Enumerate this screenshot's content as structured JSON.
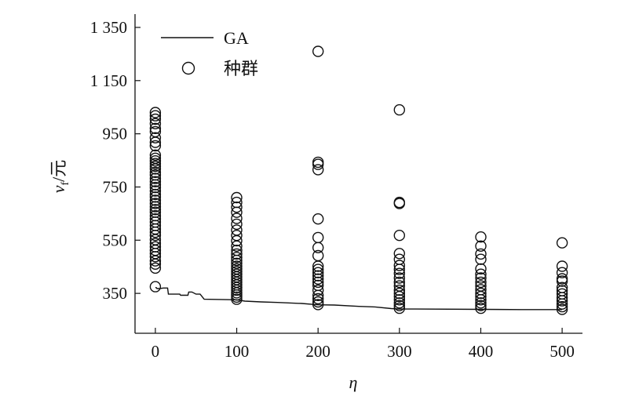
{
  "chart_data": {
    "type": "scatter",
    "xlabel": "η",
    "ylabel": "v_f/元",
    "ylabel_main": "v",
    "ylabel_sub": "f",
    "ylabel_unit": "/元",
    "xlim": [
      -25,
      525
    ],
    "ylim": [
      200,
      1400
    ],
    "x_ticks": [
      0,
      100,
      200,
      300,
      400,
      500
    ],
    "y_ticks": [
      350,
      550,
      750,
      950,
      1150,
      1350
    ],
    "x_tick_labels": [
      "0",
      "100",
      "200",
      "300",
      "400",
      "500"
    ],
    "y_tick_labels": [
      "350",
      "550",
      "750",
      "950",
      "1 150",
      "1 350"
    ],
    "legend": {
      "position": "top-left",
      "entries": [
        {
          "label": "GA",
          "kind": "line"
        },
        {
          "label": "种群",
          "kind": "circle"
        }
      ]
    },
    "series": [
      {
        "name": "GA",
        "type": "line",
        "x": [
          0,
          1,
          2,
          5,
          10,
          15,
          16,
          30,
          31,
          40,
          41,
          45,
          50,
          55,
          60,
          100,
          110,
          130,
          150,
          180,
          200,
          220,
          250,
          270,
          290,
          300,
          320,
          400,
          450,
          500
        ],
        "y": [
          372,
          372,
          368,
          368,
          370,
          370,
          347,
          347,
          343,
          343,
          355,
          355,
          347,
          347,
          328,
          326,
          321,
          318,
          316,
          312,
          307,
          306,
          301,
          299,
          293,
          291,
          291,
          290,
          289,
          289
        ]
      },
      {
        "name": "种群",
        "type": "scatter",
        "points": [
          [
            0,
            1030
          ],
          [
            0,
            1018
          ],
          [
            0,
            1005
          ],
          [
            0,
            988
          ],
          [
            0,
            970
          ],
          [
            0,
            958
          ],
          [
            0,
            935
          ],
          [
            0,
            918
          ],
          [
            0,
            905
          ],
          [
            0,
            870
          ],
          [
            0,
            858
          ],
          [
            0,
            848
          ],
          [
            0,
            838
          ],
          [
            0,
            828
          ],
          [
            0,
            818
          ],
          [
            0,
            805
          ],
          [
            0,
            795
          ],
          [
            0,
            782
          ],
          [
            0,
            770
          ],
          [
            0,
            758
          ],
          [
            0,
            748
          ],
          [
            0,
            735
          ],
          [
            0,
            722
          ],
          [
            0,
            712
          ],
          [
            0,
            700
          ],
          [
            0,
            688
          ],
          [
            0,
            676
          ],
          [
            0,
            665
          ],
          [
            0,
            655
          ],
          [
            0,
            642
          ],
          [
            0,
            630
          ],
          [
            0,
            618
          ],
          [
            0,
            605
          ],
          [
            0,
            592
          ],
          [
            0,
            580
          ],
          [
            0,
            568
          ],
          [
            0,
            552
          ],
          [
            0,
            538
          ],
          [
            0,
            525
          ],
          [
            0,
            512
          ],
          [
            0,
            500
          ],
          [
            0,
            488
          ],
          [
            0,
            472
          ],
          [
            0,
            460
          ],
          [
            0,
            445
          ],
          [
            0,
            375
          ],
          [
            100,
            710
          ],
          [
            100,
            692
          ],
          [
            100,
            674
          ],
          [
            100,
            655
          ],
          [
            100,
            632
          ],
          [
            100,
            610
          ],
          [
            100,
            588
          ],
          [
            100,
            568
          ],
          [
            100,
            548
          ],
          [
            100,
            528
          ],
          [
            100,
            512
          ],
          [
            100,
            498
          ],
          [
            100,
            485
          ],
          [
            100,
            474
          ],
          [
            100,
            463
          ],
          [
            100,
            452
          ],
          [
            100,
            442
          ],
          [
            100,
            432
          ],
          [
            100,
            422
          ],
          [
            100,
            412
          ],
          [
            100,
            402
          ],
          [
            100,
            392
          ],
          [
            100,
            382
          ],
          [
            100,
            372
          ],
          [
            100,
            362
          ],
          [
            100,
            352
          ],
          [
            100,
            344
          ],
          [
            100,
            336
          ],
          [
            100,
            328
          ],
          [
            200,
            1260
          ],
          [
            200,
            843
          ],
          [
            200,
            835
          ],
          [
            200,
            815
          ],
          [
            200,
            630
          ],
          [
            200,
            560
          ],
          [
            200,
            522
          ],
          [
            200,
            492
          ],
          [
            200,
            452
          ],
          [
            200,
            440
          ],
          [
            200,
            428
          ],
          [
            200,
            416
          ],
          [
            200,
            404
          ],
          [
            200,
            392
          ],
          [
            200,
            380
          ],
          [
            200,
            362
          ],
          [
            200,
            342
          ],
          [
            200,
            330
          ],
          [
            200,
            318
          ],
          [
            200,
            308
          ],
          [
            300,
            1040
          ],
          [
            300,
            692
          ],
          [
            300,
            688
          ],
          [
            300,
            568
          ],
          [
            300,
            500
          ],
          [
            300,
            478
          ],
          [
            300,
            455
          ],
          [
            300,
            440
          ],
          [
            300,
            425
          ],
          [
            300,
            408
          ],
          [
            300,
            392
          ],
          [
            300,
            378
          ],
          [
            300,
            362
          ],
          [
            300,
            350
          ],
          [
            300,
            338
          ],
          [
            300,
            326
          ],
          [
            300,
            314
          ],
          [
            300,
            304
          ],
          [
            300,
            294
          ],
          [
            400,
            562
          ],
          [
            400,
            528
          ],
          [
            400,
            498
          ],
          [
            400,
            478
          ],
          [
            400,
            442
          ],
          [
            400,
            422
          ],
          [
            400,
            408
          ],
          [
            400,
            392
          ],
          [
            400,
            378
          ],
          [
            400,
            364
          ],
          [
            400,
            350
          ],
          [
            400,
            338
          ],
          [
            400,
            326
          ],
          [
            400,
            314
          ],
          [
            400,
            304
          ],
          [
            400,
            294
          ],
          [
            500,
            540
          ],
          [
            500,
            452
          ],
          [
            500,
            428
          ],
          [
            500,
            405
          ],
          [
            500,
            396
          ],
          [
            500,
            372
          ],
          [
            500,
            360
          ],
          [
            500,
            348
          ],
          [
            500,
            334
          ],
          [
            500,
            322
          ],
          [
            500,
            310
          ],
          [
            500,
            300
          ],
          [
            500,
            290
          ]
        ]
      }
    ]
  }
}
